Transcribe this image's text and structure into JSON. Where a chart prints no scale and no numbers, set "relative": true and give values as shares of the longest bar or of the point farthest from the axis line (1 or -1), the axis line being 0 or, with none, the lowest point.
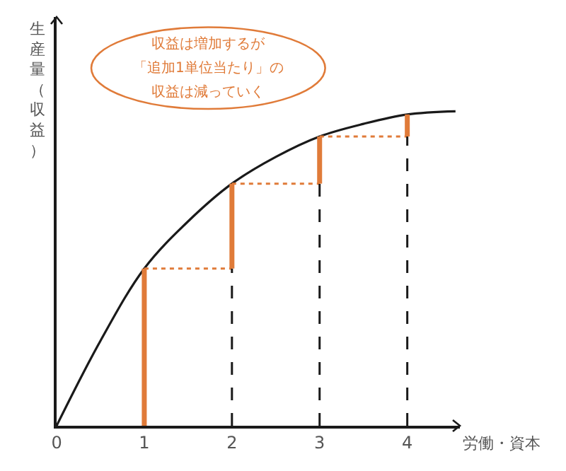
{
  "chart_data": {
    "type": "line",
    "relative": true,
    "xlabel": "労働・資本",
    "ylabel": "生産量（収益）",
    "annotations": [
      "収益は増加するが",
      "「追加1単位当たり」の",
      "収益は減っていく"
    ],
    "xlim": [
      0,
      4.6
    ],
    "xticks": [
      0,
      1,
      2,
      3,
      4
    ],
    "tick_labels": "x",
    "marker": "none",
    "series": [
      {
        "color": "#1a1a1a",
        "line_style": "solid",
        "x": [
          0,
          0.5,
          1,
          1.5,
          2,
          2.5,
          3,
          3.5,
          4,
          4.55
        ],
        "values": [
          0,
          0.27,
          0.5,
          0.65,
          0.77,
          0.855,
          0.92,
          0.96,
          0.99,
          1.0
        ]
      },
      {
        "color": "#e07b39",
        "line_style": "dotted",
        "x": [
          1,
          2
        ],
        "values": [
          0.5,
          0.5
        ]
      },
      {
        "color": "#e07b39",
        "line_style": "dotted",
        "x": [
          2,
          3
        ],
        "values": [
          0.77,
          0.77
        ]
      },
      {
        "color": "#e07b39",
        "line_style": "dotted",
        "x": [
          3,
          4
        ],
        "values": [
          0.92,
          0.92
        ]
      },
      {
        "color": "#1a1a1a",
        "line_style": "dashed",
        "x": [
          2,
          2
        ],
        "values": [
          0,
          0.5
        ]
      },
      {
        "color": "#1a1a1a",
        "line_style": "dashed",
        "x": [
          3,
          3
        ],
        "values": [
          0,
          0.77
        ]
      },
      {
        "color": "#1a1a1a",
        "line_style": "dashed",
        "x": [
          4,
          4
        ],
        "values": [
          0,
          0.92
        ]
      },
      {
        "color": "#e07b39",
        "line_style": "solid",
        "x": [
          1,
          1
        ],
        "values": [
          0,
          0.5
        ]
      },
      {
        "color": "#e07b39",
        "line_style": "solid",
        "x": [
          2,
          2
        ],
        "values": [
          0.5,
          0.77
        ]
      },
      {
        "color": "#e07b39",
        "line_style": "solid",
        "x": [
          3,
          3
        ],
        "values": [
          0.77,
          0.92
        ]
      },
      {
        "color": "#e07b39",
        "line_style": "solid",
        "x": [
          4,
          4
        ],
        "values": [
          0.92,
          0.99
        ]
      }
    ]
  }
}
